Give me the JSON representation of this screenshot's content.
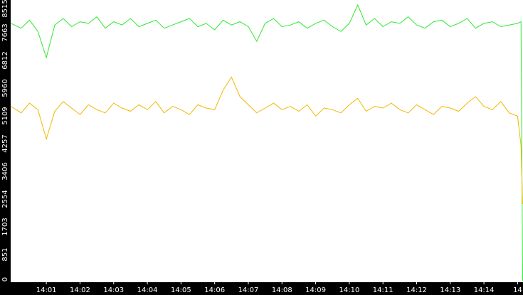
{
  "chart_data": {
    "type": "line",
    "x": [
      -0.05,
      0.25,
      0.5,
      0.75,
      1,
      1.25,
      1.5,
      1.75,
      2,
      2.25,
      2.5,
      2.75,
      3,
      3.25,
      3.5,
      3.75,
      4,
      4.25,
      4.5,
      4.75,
      5,
      5.25,
      5.5,
      5.75,
      6,
      6.25,
      6.5,
      6.75,
      7,
      7.25,
      7.5,
      7.75,
      8,
      8.25,
      8.5,
      8.75,
      9,
      9.25,
      9.5,
      9.75,
      10,
      10.25,
      10.5,
      10.75,
      11,
      11.25,
      11.5,
      11.75,
      12,
      12.25,
      12.5,
      12.75,
      13,
      13.25,
      13.5,
      13.75,
      14,
      14.25,
      14.5,
      14.75,
      15,
      15.1,
      15.15
    ],
    "series": [
      {
        "name": "green",
        "color": "#2ee82e",
        "values": [
          7950,
          7800,
          8050,
          7700,
          6900,
          7900,
          8100,
          7850,
          8000,
          7950,
          8150,
          7800,
          8000,
          7900,
          8100,
          7850,
          7950,
          8050,
          7800,
          7900,
          8000,
          8100,
          7850,
          7950,
          7750,
          8050,
          7900,
          8000,
          7850,
          7400,
          7950,
          8100,
          7850,
          7900,
          8000,
          7800,
          7950,
          8050,
          7850,
          7700,
          7950,
          8515,
          7900,
          8100,
          7850,
          8000,
          7950,
          8150,
          7900,
          7800,
          8000,
          8050,
          7850,
          7950,
          8100,
          7800,
          7950,
          8000,
          7850,
          7900,
          7950,
          8000,
          50
        ]
      },
      {
        "name": "yellow",
        "color": "#f2b800",
        "values": [
          5400,
          5200,
          5500,
          5300,
          4400,
          5250,
          5550,
          5350,
          5150,
          5450,
          5300,
          5200,
          5500,
          5350,
          5250,
          5450,
          5300,
          5550,
          5200,
          5400,
          5300,
          5150,
          5450,
          5350,
          5300,
          5900,
          6300,
          5700,
          5450,
          5200,
          5350,
          5500,
          5300,
          5400,
          5250,
          5450,
          5100,
          5350,
          5300,
          5200,
          5450,
          5650,
          5250,
          5400,
          5350,
          5500,
          5300,
          5200,
          5450,
          5300,
          5150,
          5400,
          5350,
          5250,
          5500,
          5700,
          5400,
          5300,
          5550,
          5200,
          5100,
          4200,
          2400
        ]
      }
    ],
    "xlim": [
      -0.06,
      15.16
    ],
    "ylim": [
      0,
      8515
    ],
    "yticks": [
      0,
      851,
      1703,
      2554,
      3406,
      4257,
      5109,
      5960,
      6812,
      7663,
      8515
    ],
    "xticks": [
      {
        "value": 1,
        "label": "14:01"
      },
      {
        "value": 2,
        "label": "14:02"
      },
      {
        "value": 3,
        "label": "14:03"
      },
      {
        "value": 4,
        "label": "14:04"
      },
      {
        "value": 5,
        "label": "14:05"
      },
      {
        "value": 6,
        "label": "14:06"
      },
      {
        "value": 7,
        "label": "14:07"
      },
      {
        "value": 8,
        "label": "14:08"
      },
      {
        "value": 9,
        "label": "14:09"
      },
      {
        "value": 10,
        "label": "14:10"
      },
      {
        "value": 11,
        "label": "14:11"
      },
      {
        "value": 12,
        "label": "14:12"
      },
      {
        "value": 13,
        "label": "14:13"
      },
      {
        "value": 14,
        "label": "14:14"
      },
      {
        "value": 15,
        "label": "14"
      }
    ]
  }
}
